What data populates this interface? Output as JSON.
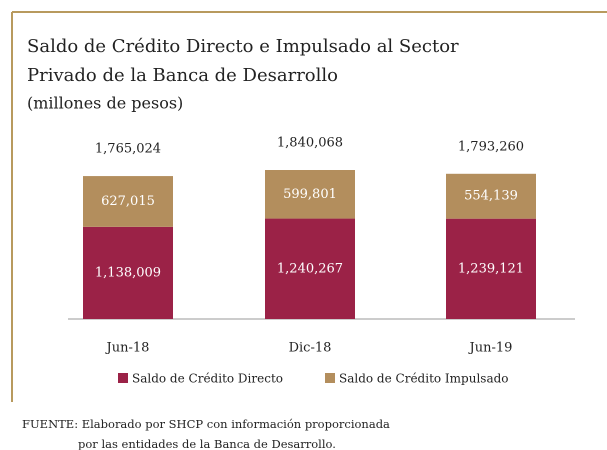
{
  "chart_data": {
    "type": "stacked_bar",
    "title": "Saldo de Crédito Directo e Impulsado al Sector",
    "title_line2": "Privado de la Banca de Desarrollo",
    "subtitle": "(millones de pesos)",
    "categories": [
      "Jun-18",
      "Dic-18",
      "Jun-19"
    ],
    "series": [
      {
        "name": "Saldo de Crédito Directo",
        "color": "#9b2247",
        "values": [
          1138009,
          1240267,
          1239121
        ],
        "value_labels": [
          "1,138,009",
          "1,240,267",
          "1,239,121"
        ]
      },
      {
        "name": "Saldo de Crédito Impulsado",
        "color": "#b38e5d",
        "values": [
          627015,
          599801,
          554139
        ],
        "value_labels": [
          "627,015",
          "599,801",
          "554,139"
        ]
      }
    ],
    "totals": [
      1765024,
      1840068,
      1793260
    ],
    "total_labels": [
      "1,765,024",
      "1,840,068",
      "1,793,260"
    ],
    "source": "FUENTE: Elaborado por SHCP con información proporcionada",
    "source_line2": "por las entidades de la Banca de Desarrollo."
  }
}
